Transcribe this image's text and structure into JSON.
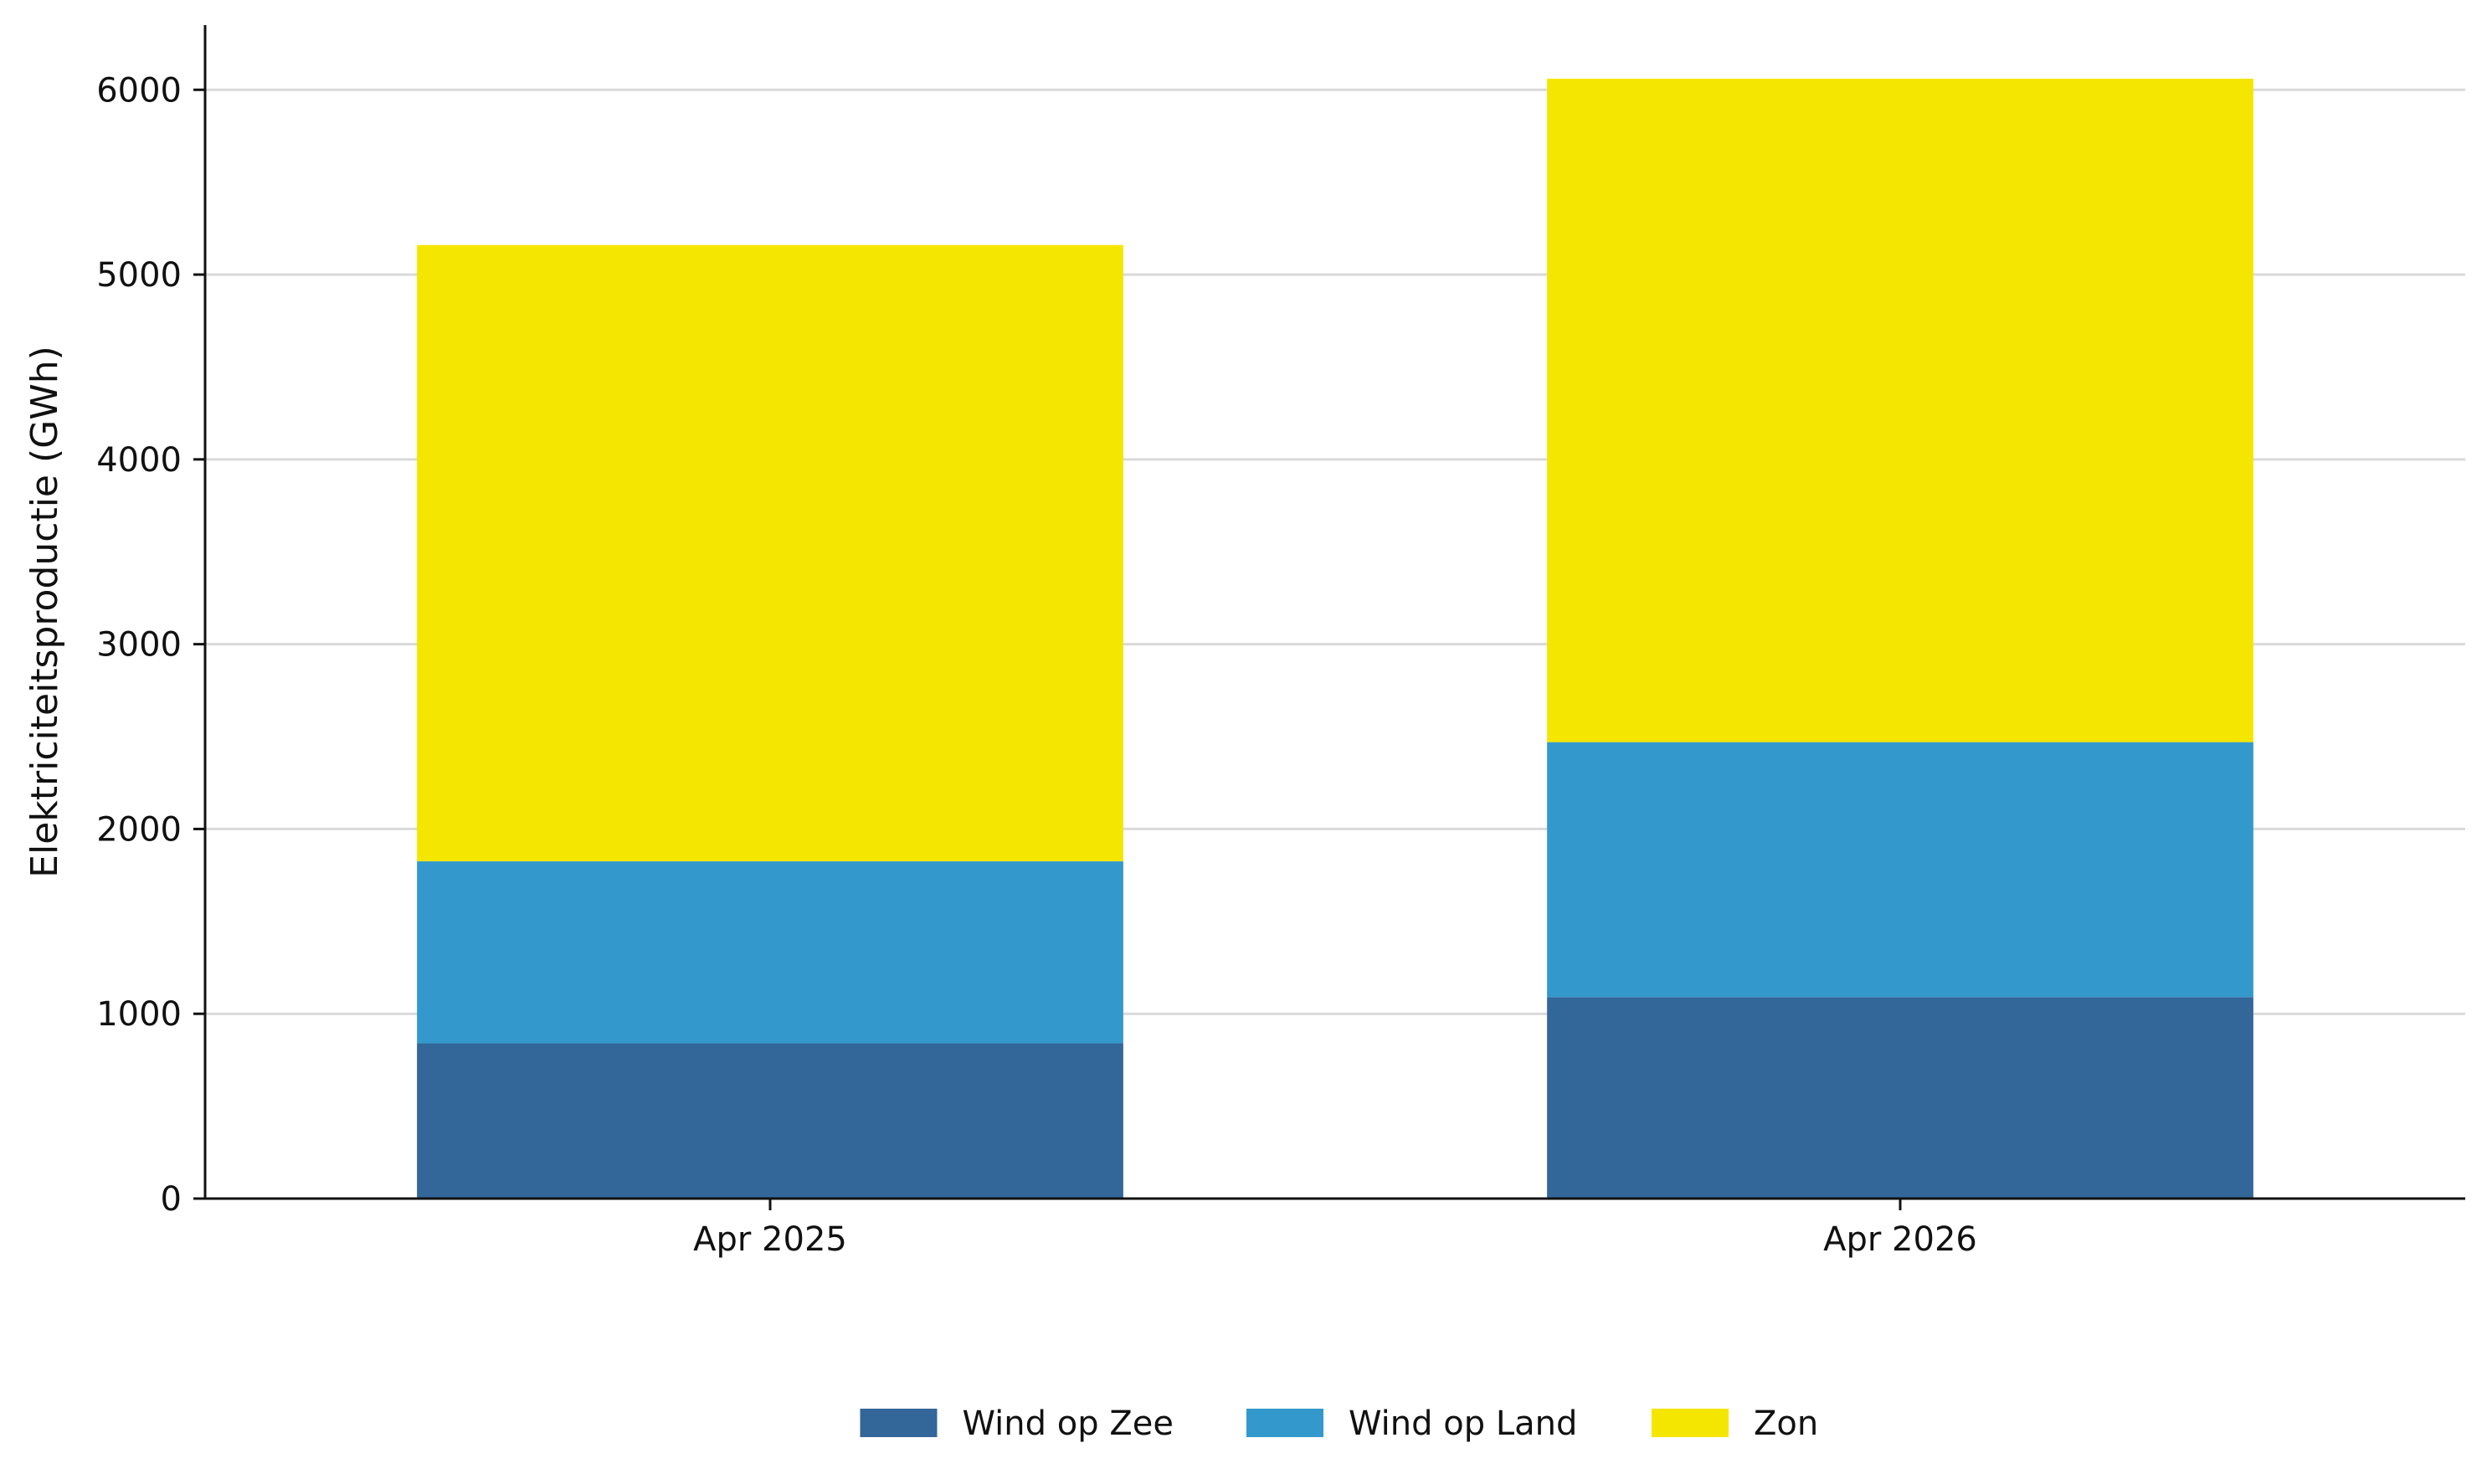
{
  "chart_data": {
    "type": "bar",
    "stacked": true,
    "categories": [
      "Apr 2025",
      "Apr 2026"
    ],
    "series": [
      {
        "name": "Wind op Zee",
        "values": [
          840,
          1090
        ],
        "color": "#336699"
      },
      {
        "name": "Wind op Land",
        "values": [
          985,
          1380
        ],
        "color": "#3399cc"
      },
      {
        "name": "Zon",
        "values": [
          3335,
          3590
        ],
        "color": "#f5e600"
      }
    ],
    "ylabel": "Elektriciteitsproductie (GWh)",
    "xlabel": "",
    "ylim": [
      0,
      6350
    ],
    "yticks": [
      0,
      1000,
      2000,
      3000,
      4000,
      5000,
      6000
    ],
    "grid": "horizontal",
    "legend_position": "bottom"
  }
}
